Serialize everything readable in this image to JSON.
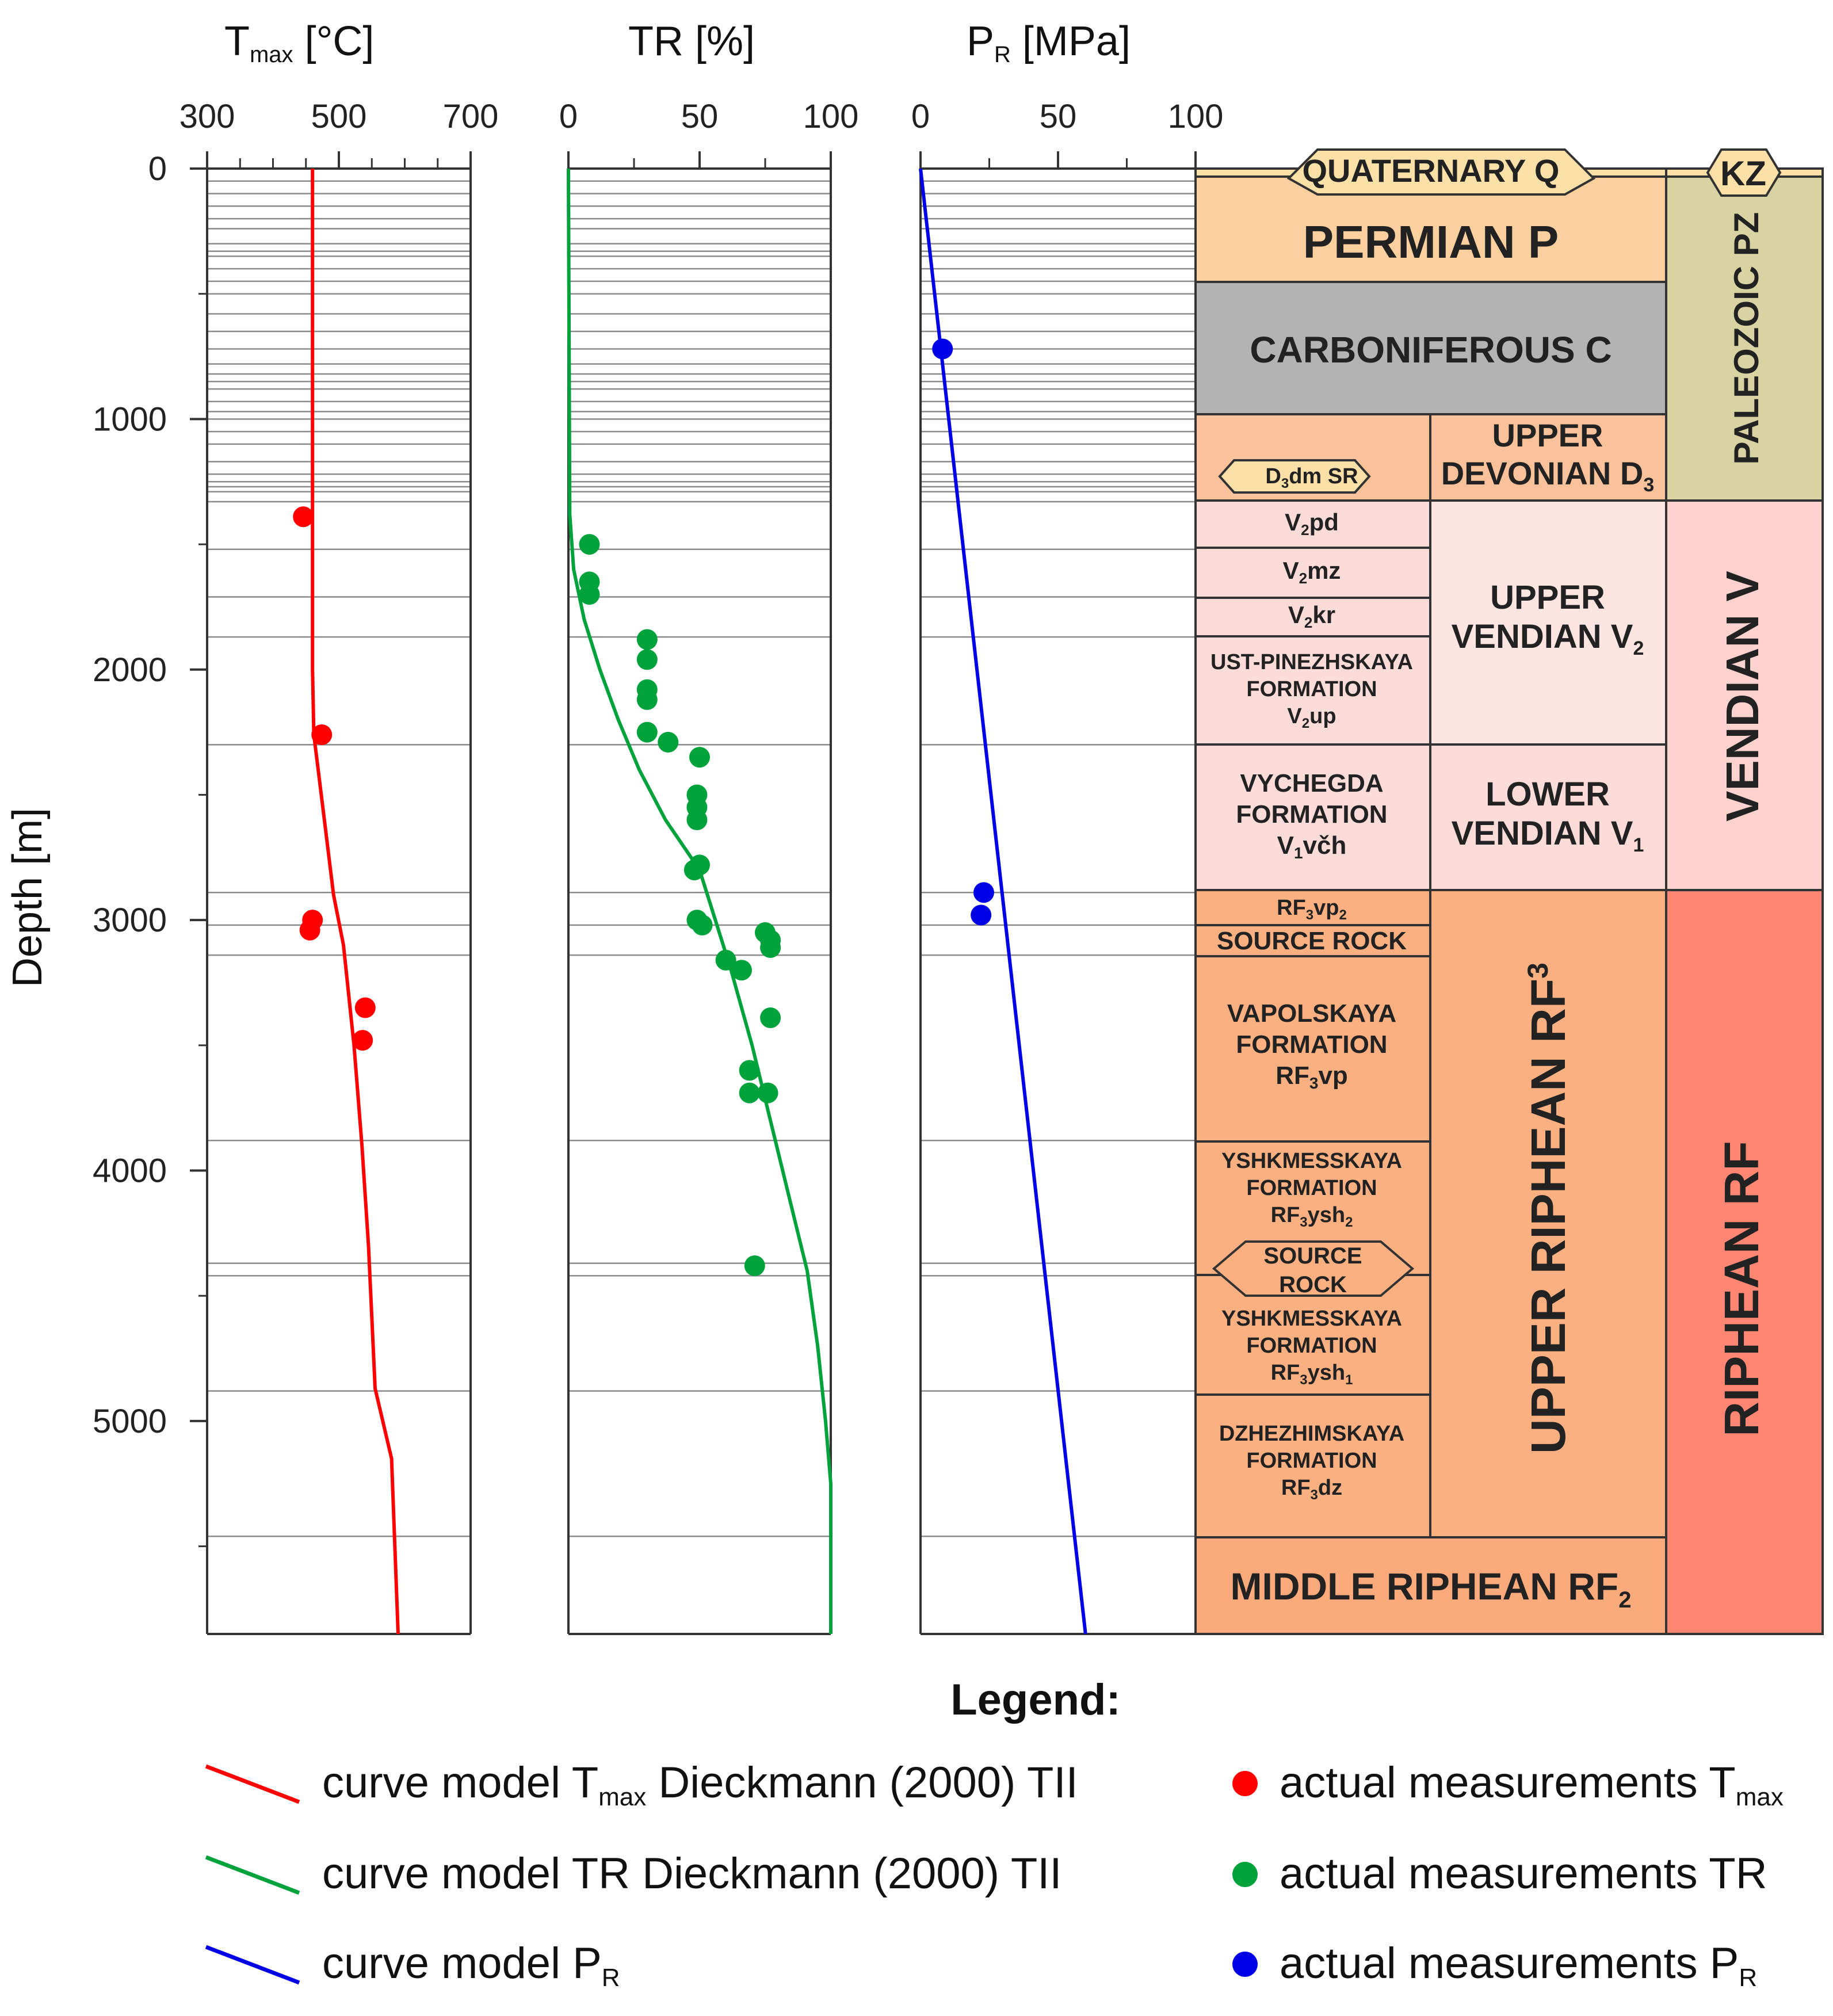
{
  "colors": {
    "tmax": "#ff0000",
    "tr": "#00a23c",
    "pr": "#0000e6",
    "quaternary": "#fbe0a8",
    "permian": "#fbcf9e",
    "carboniferous": "#b3b3b3",
    "devonian": "#f9c29b",
    "vendian_cell": "#fcdcd8",
    "vendian_group": "#fdd2cf",
    "riphean_cell": "#fbb081",
    "riphean_group": "#fe8672",
    "paleozoic": "#d9d2a2",
    "kz": "#fbe0a8"
  },
  "chart_data": {
    "type": "line",
    "ylabel": "Depth [m]",
    "ylim": [
      0,
      5850
    ],
    "yticks": [
      0,
      1000,
      2000,
      3000,
      4000,
      5000
    ],
    "yticklabels": [
      "0",
      "1000",
      "2000",
      "3000",
      "4000",
      "5000"
    ],
    "horizon_lines": [
      50,
      100,
      150,
      200,
      240,
      300,
      330,
      350,
      400,
      450,
      500,
      580,
      650,
      720,
      780,
      820,
      850,
      880,
      930,
      970,
      1000,
      1050,
      1100,
      1170,
      1220,
      1250,
      1270,
      1290,
      1330,
      1520,
      1710,
      1870,
      2300,
      2890,
      3020,
      3140,
      3880,
      4370,
      4420,
      4880,
      5460
    ],
    "panels": [
      {
        "name": "tmax",
        "title_main": "T",
        "title_sub": "max",
        "title_rest": " [°C]",
        "xlim": [
          300,
          700
        ],
        "xticks": [
          300,
          500,
          700
        ],
        "xticklabels": [
          "300",
          "500",
          "700"
        ],
        "minor_step": 50,
        "curve": {
          "depth": [
            0,
            1330,
            2000,
            2260,
            2600,
            2900,
            3100,
            3500,
            3900,
            4300,
            4870,
            5150,
            5850
          ],
          "x": [
            460,
            460,
            460,
            462,
            478,
            492,
            507,
            523,
            535,
            545,
            555,
            580,
            590
          ]
        },
        "points": {
          "depth": [
            1390,
            2260,
            3000,
            3040,
            3350,
            3480
          ],
          "x": [
            446,
            474,
            460,
            456,
            540,
            536
          ]
        }
      },
      {
        "name": "tr",
        "title_main": "TR [%]",
        "title_sub": "",
        "title_rest": "",
        "xlim": [
          0,
          100
        ],
        "xticks": [
          0,
          50,
          100
        ],
        "xticklabels": [
          "0",
          "50",
          "100"
        ],
        "minor_step": 25,
        "curve": {
          "depth": [
            0,
            1380,
            1600,
            1800,
            2000,
            2200,
            2400,
            2600,
            2800,
            3000,
            3200,
            3500,
            3800,
            4100,
            4400,
            4700,
            5000,
            5250,
            5850
          ],
          "x": [
            0,
            0.5,
            2,
            6,
            12,
            19,
            27,
            37,
            50,
            56,
            62,
            70,
            77,
            84,
            91,
            95,
            98,
            100,
            100
          ]
        },
        "points": {
          "depth": [
            1500,
            1650,
            1700,
            1880,
            1960,
            2080,
            2120,
            2250,
            2290,
            2350,
            2500,
            2550,
            2600,
            2780,
            2800,
            3000,
            3020,
            3050,
            3080,
            3110,
            3160,
            3200,
            3390,
            3600,
            3690,
            3690,
            4380
          ],
          "x": [
            8,
            8,
            8,
            30,
            30,
            30,
            30,
            30,
            38,
            50,
            49,
            49,
            49,
            50,
            48,
            49,
            51,
            75,
            77,
            77,
            60,
            66,
            77,
            69,
            69,
            76,
            71
          ]
        }
      },
      {
        "name": "pr",
        "title_main": "P",
        "title_sub": "R",
        "title_rest": " [MPa]",
        "xlim": [
          0,
          100
        ],
        "xticks": [
          0,
          50,
          100
        ],
        "xticklabels": [
          "0",
          "50",
          "100"
        ],
        "minor_step": 25,
        "curve": {
          "depth": [
            0,
            5850
          ],
          "x": [
            0,
            60
          ]
        },
        "points": {
          "depth": [
            720,
            2890,
            2980
          ],
          "x": [
            8,
            23,
            22
          ]
        }
      }
    ]
  },
  "stratigraphy": {
    "quaternary": "QUATERNARY Q",
    "kz": "KZ",
    "permian": "PERMIAN P",
    "carboniferous": "CARBONIFEROUS C",
    "upper_devonian_line1": "UPPER",
    "upper_devonian_line2": "DEVONIAN D",
    "upper_devonian_sub": "3",
    "d3dm_pre": "D",
    "d3dm_sub": "3",
    "d3dm_post": "dm SR",
    "paleozoic": "PALEOZOIC PZ",
    "v2pd_pre": "V",
    "v2pd_sub": "2",
    "v2pd_post": "pd",
    "v2mz_pre": "V",
    "v2mz_sub": "2",
    "v2mz_post": "mz",
    "v2kr_pre": "V",
    "v2kr_sub": "2",
    "v2kr_post": "kr",
    "ust_line1": "UST-PINEZHSKAYA",
    "ust_line2": "FORMATION",
    "ust_pre": "V",
    "ust_sub": "2",
    "ust_post": "up",
    "upper_vendian_line1": "UPPER",
    "upper_vendian_line2": "VENDIAN V",
    "upper_vendian_sub": "2",
    "vychegda_line1": "VYCHEGDA",
    "vychegda_line2": "FORMATION",
    "vychegda_pre": "V",
    "vychegda_sub": "1",
    "vychegda_post": "včh",
    "lower_vendian_line1": "LOWER",
    "lower_vendian_line2": "VENDIAN V",
    "lower_vendian_sub": "1",
    "vendian": "VENDIAN V",
    "rf3vp2_pre": "RF",
    "rf3vp2_sub": "3",
    "rf3vp2_mid": "vp",
    "rf3vp2_sub2": "2",
    "source_rock_1": "SOURCE ROCK",
    "vapol_line1": "VAPOLSKAYA",
    "vapol_line2": "FORMATION",
    "vapol_pre": "RF",
    "vapol_sub": "3",
    "vapol_post": "vp",
    "yshk2_line1": "YSHKMESSKAYA",
    "yshk2_line2": "FORMATION",
    "yshk2_pre": "RF",
    "yshk2_sub": "3",
    "yshk2_mid": "ysh",
    "yshk2_sub2": "2",
    "source_rock_2_line1": "SOURCE",
    "source_rock_2_line2": "ROCK",
    "yshk1_line1": "YSHKMESSKAYA",
    "yshk1_line2": "FORMATION",
    "yshk1_pre": "RF",
    "yshk1_sub": "3",
    "yshk1_mid": "ysh",
    "yshk1_sub2": "1",
    "dzhez_line1": "DZHEZHIMSKAYA",
    "dzhez_line2": "FORMATION",
    "dzhez_pre": "RF",
    "dzhez_sub": "3",
    "dzhez_post": "dz",
    "upper_riphean": "UPPER RIPHEAN RF",
    "upper_riphean_sub": "3",
    "riphean": "RIPHEAN RF",
    "middle_riphean": "MIDDLE RIPHEAN RF",
    "middle_riphean_sub": "2"
  },
  "legend": {
    "title": "Legend:",
    "items": [
      {
        "pre": "curve model T",
        "sub": "max",
        "post": " Dieckmann (2000) TII"
      },
      {
        "pre": "curve model TR Dieckmann (2000) TII",
        "sub": "",
        "post": ""
      },
      {
        "pre": "curve model P",
        "sub": "R",
        "post": ""
      },
      {
        "pre": "actual measurements T",
        "sub": "max",
        "post": ""
      },
      {
        "pre": "actual measurements TR",
        "sub": "",
        "post": ""
      },
      {
        "pre": "actual measurements P",
        "sub": "R",
        "post": ""
      }
    ]
  }
}
